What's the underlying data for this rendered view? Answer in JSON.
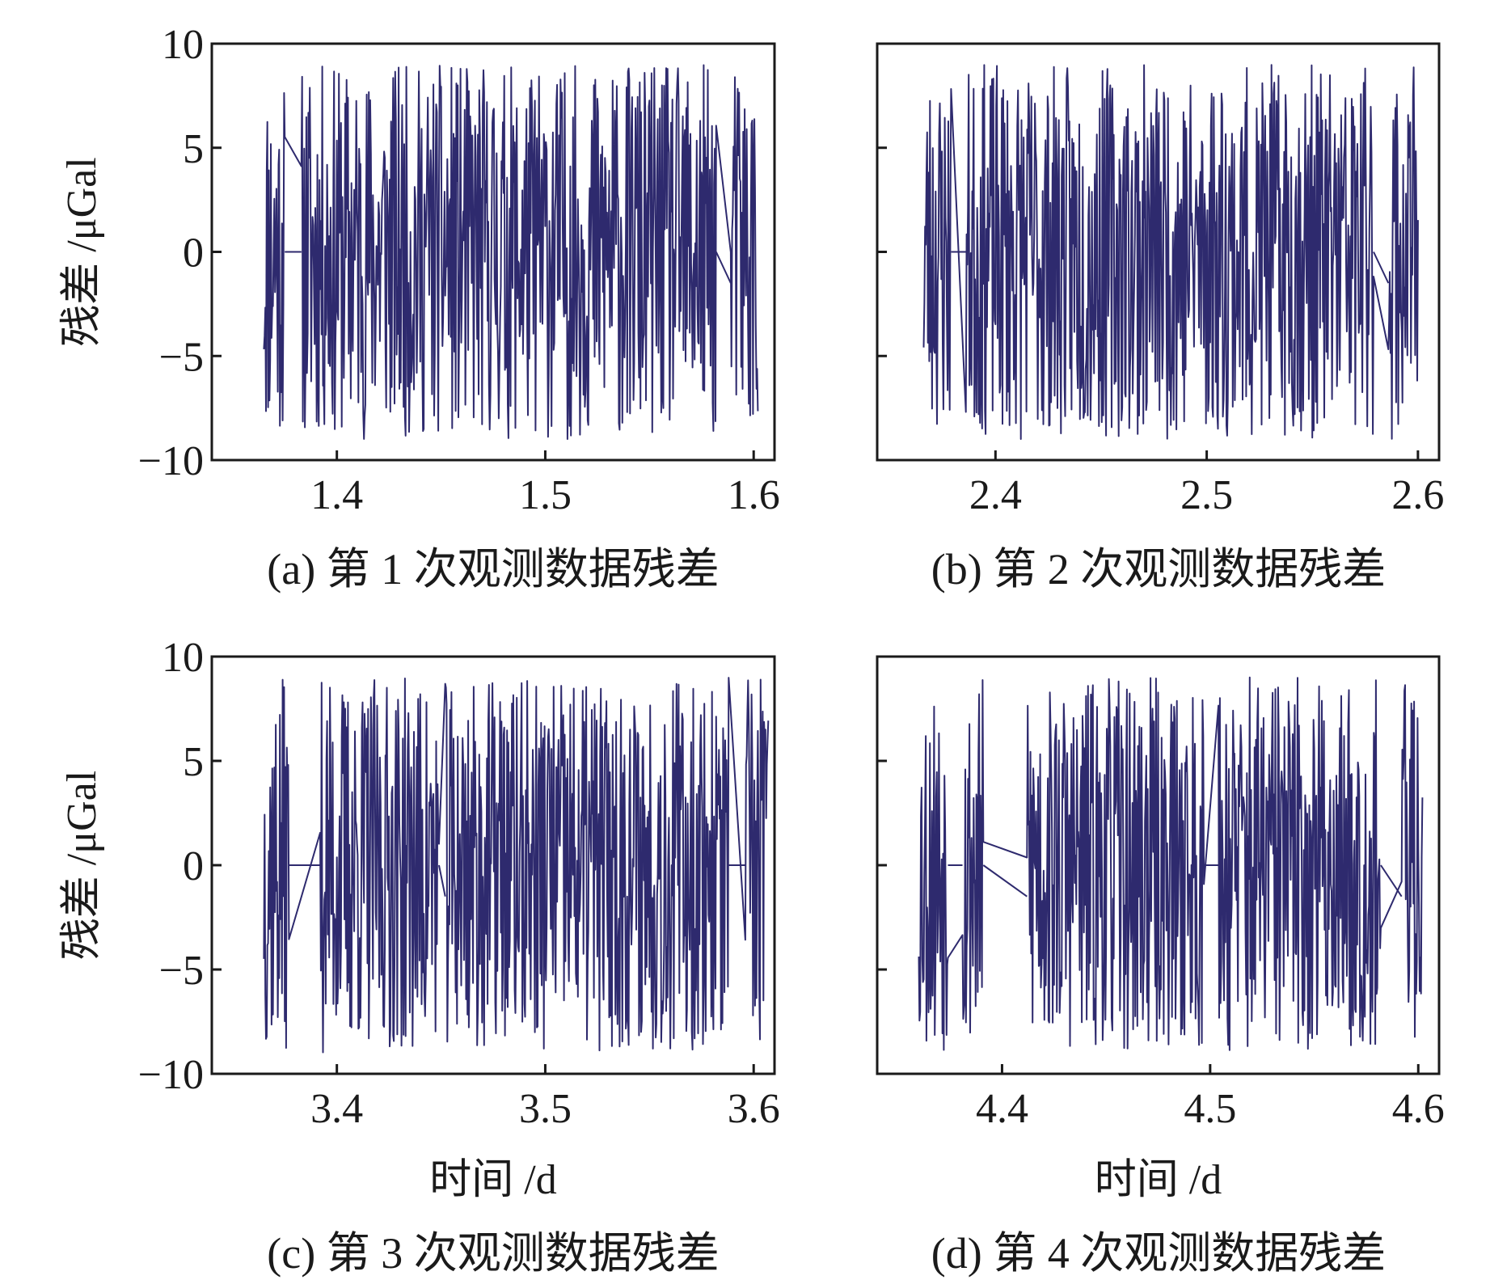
{
  "chart_data": [
    {
      "id": "a",
      "type": "line",
      "caption": "(a) 第 1 次观测数据残差",
      "ylabel": "残差 /μGal",
      "xlabel": "",
      "xlim": [
        1.34,
        1.61
      ],
      "ylim": [
        -10,
        10
      ],
      "xticks": [
        1.4,
        1.5,
        1.6
      ],
      "xtick_labels": [
        "1.4",
        "1.5",
        "1.6"
      ],
      "yticks": [
        10,
        5,
        0,
        -5,
        -10
      ],
      "ytick_labels": [
        "10",
        "5",
        "0",
        "−5",
        "−10"
      ],
      "show_ytick_labels": true,
      "color": "#2e2a6e",
      "amplitude": 9,
      "segments": [
        [
          1.365,
          1.375
        ],
        [
          1.383,
          1.582
        ],
        [
          1.589,
          1.602
        ]
      ],
      "gaps": [
        [
          1.375,
          1.383
        ],
        [
          1.582,
          1.589
        ]
      ],
      "seed": 11
    },
    {
      "id": "b",
      "type": "line",
      "caption": "(b) 第 2 次观测数据残差",
      "ylabel": "",
      "xlabel": "",
      "xlim": [
        2.344,
        2.61
      ],
      "ylim": [
        -10,
        10
      ],
      "xticks": [
        2.4,
        2.5,
        2.6
      ],
      "xtick_labels": [
        "2.4",
        "2.5",
        "2.6"
      ],
      "yticks": [
        10,
        5,
        0,
        -5,
        -10
      ],
      "ytick_labels": [
        "10",
        "5",
        "0",
        "−5",
        "−10"
      ],
      "show_ytick_labels": false,
      "color": "#2e2a6e",
      "amplitude": 9,
      "segments": [
        [
          2.366,
          2.379
        ],
        [
          2.386,
          2.579
        ],
        [
          2.586,
          2.6
        ]
      ],
      "gaps": [
        [
          2.379,
          2.386
        ],
        [
          2.579,
          2.586
        ]
      ],
      "seed": 23
    },
    {
      "id": "c",
      "type": "line",
      "caption": "(c) 第 3 次观测数据残差",
      "ylabel": "残差 /μGal",
      "xlabel": "时间 /d",
      "xlim": [
        3.34,
        3.61
      ],
      "ylim": [
        -10,
        10
      ],
      "xticks": [
        3.4,
        3.5,
        3.6
      ],
      "xtick_labels": [
        "3.4",
        "3.5",
        "3.6"
      ],
      "yticks": [
        10,
        5,
        0,
        -5,
        -10
      ],
      "ytick_labels": [
        "10",
        "5",
        "0",
        "−5",
        "−10"
      ],
      "show_ytick_labels": true,
      "color": "#2e2a6e",
      "amplitude": 9,
      "segments": [
        [
          3.365,
          3.377
        ],
        [
          3.392,
          3.449
        ],
        [
          3.452,
          3.588
        ],
        [
          3.596,
          3.607
        ]
      ],
      "gaps": [
        [
          3.377,
          3.392
        ],
        [
          3.449,
          3.452
        ],
        [
          3.588,
          3.596
        ]
      ],
      "seed": 37
    },
    {
      "id": "d",
      "type": "line",
      "caption": "(d) 第 4 次观测数据残差",
      "ylabel": "",
      "xlabel": "时间 /d",
      "xlim": [
        4.34,
        4.61
      ],
      "ylim": [
        -10,
        10
      ],
      "xticks": [
        4.4,
        4.5,
        4.6
      ],
      "xtick_labels": [
        "4.4",
        "4.5",
        "4.6"
      ],
      "yticks": [
        10,
        5,
        0,
        -5,
        -10
      ],
      "ytick_labels": [
        "10",
        "5",
        "0",
        "−5",
        "−10"
      ],
      "show_ytick_labels": false,
      "color": "#2e2a6e",
      "amplitude": 9,
      "segments": [
        [
          4.36,
          4.374
        ],
        [
          4.381,
          4.391
        ],
        [
          4.412,
          4.497
        ],
        [
          4.504,
          4.582
        ],
        [
          4.592,
          4.602
        ]
      ],
      "gaps": [
        [
          4.374,
          4.381
        ],
        [
          4.391,
          4.412
        ],
        [
          4.497,
          4.504
        ],
        [
          4.582,
          4.592
        ]
      ],
      "seed": 53
    }
  ]
}
